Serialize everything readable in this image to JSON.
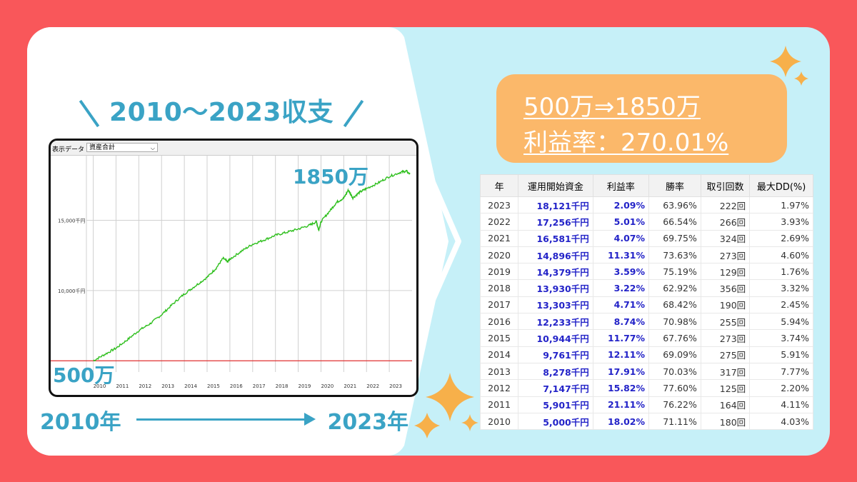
{
  "headline": "2010〜2023収支",
  "chart_labels": {
    "end_value": "1850万",
    "start_value": "500万"
  },
  "timeline": {
    "start": "2010年",
    "end": "2023年"
  },
  "summary": {
    "line1": "500万⇒1850万",
    "line2": "利益率：270.01%"
  },
  "chart_ui": {
    "display_label": "表示データ",
    "selected": "資産合計"
  },
  "colors": {
    "background": "#f9575a",
    "panel_light": "#c6f0f8",
    "accent": "#3aa3c5",
    "summary_box": "#fbb86a",
    "line": "#2fbf1e",
    "baseline": "#e03030",
    "sparkle": "#f7b04a"
  },
  "table": {
    "headers": [
      "年",
      "運用開始資金",
      "利益率",
      "勝率",
      "取引回数",
      "最大DD(%)"
    ],
    "rows": [
      {
        "year": "2023",
        "capital": "18,121千円",
        "profit": "2.09%",
        "win": "63.96%",
        "trades": "222回",
        "dd": "1.97%"
      },
      {
        "year": "2022",
        "capital": "17,256千円",
        "profit": "5.01%",
        "win": "66.54%",
        "trades": "266回",
        "dd": "3.93%"
      },
      {
        "year": "2021",
        "capital": "16,581千円",
        "profit": "4.07%",
        "win": "69.75%",
        "trades": "324回",
        "dd": "2.69%"
      },
      {
        "year": "2020",
        "capital": "14,896千円",
        "profit": "11.31%",
        "win": "73.63%",
        "trades": "273回",
        "dd": "4.60%"
      },
      {
        "year": "2019",
        "capital": "14,379千円",
        "profit": "3.59%",
        "win": "75.19%",
        "trades": "129回",
        "dd": "1.76%"
      },
      {
        "year": "2018",
        "capital": "13,930千円",
        "profit": "3.22%",
        "win": "62.92%",
        "trades": "356回",
        "dd": "3.32%"
      },
      {
        "year": "2017",
        "capital": "13,303千円",
        "profit": "4.71%",
        "win": "68.42%",
        "trades": "190回",
        "dd": "2.45%"
      },
      {
        "year": "2016",
        "capital": "12,233千円",
        "profit": "8.74%",
        "win": "70.98%",
        "trades": "255回",
        "dd": "5.94%"
      },
      {
        "year": "2015",
        "capital": "10,944千円",
        "profit": "11.77%",
        "win": "67.76%",
        "trades": "273回",
        "dd": "3.74%"
      },
      {
        "year": "2014",
        "capital": "9,761千円",
        "profit": "12.11%",
        "win": "69.09%",
        "trades": "275回",
        "dd": "5.91%"
      },
      {
        "year": "2013",
        "capital": "8,278千円",
        "profit": "17.91%",
        "win": "70.03%",
        "trades": "317回",
        "dd": "7.77%"
      },
      {
        "year": "2012",
        "capital": "7,147千円",
        "profit": "15.82%",
        "win": "77.60%",
        "trades": "125回",
        "dd": "2.20%"
      },
      {
        "year": "2011",
        "capital": "5,901千円",
        "profit": "21.11%",
        "win": "76.22%",
        "trades": "164回",
        "dd": "4.11%"
      },
      {
        "year": "2010",
        "capital": "5,000千円",
        "profit": "18.02%",
        "win": "71.11%",
        "trades": "180回",
        "dd": "4.03%"
      }
    ]
  },
  "chart_data": {
    "type": "line",
    "x_ticks": [
      "2010",
      "2011",
      "2012",
      "2013",
      "2014",
      "2015",
      "2016",
      "2017",
      "2018",
      "2019",
      "2020",
      "2021",
      "2022",
      "2023"
    ],
    "y_ticks": [
      "10,000千円",
      "15,000千円"
    ],
    "y_tick_values": [
      10000,
      15000
    ],
    "baseline": 5000,
    "ylim": [
      4200,
      19600
    ],
    "xlim": [
      2009.7,
      2024.0
    ],
    "grid": true,
    "series": [
      {
        "points": [
          [
            2010.0,
            5000
          ],
          [
            2010.5,
            5450
          ],
          [
            2011.0,
            5900
          ],
          [
            2011.5,
            6500
          ],
          [
            2012.0,
            7150
          ],
          [
            2012.5,
            7650
          ],
          [
            2013.0,
            8280
          ],
          [
            2013.5,
            9050
          ],
          [
            2014.0,
            9760
          ],
          [
            2014.5,
            10350
          ],
          [
            2015.0,
            10940
          ],
          [
            2015.4,
            11600
          ],
          [
            2015.7,
            12300
          ],
          [
            2015.9,
            12050
          ],
          [
            2016.0,
            12230
          ],
          [
            2016.5,
            12800
          ],
          [
            2017.0,
            13300
          ],
          [
            2017.5,
            13600
          ],
          [
            2018.0,
            13930
          ],
          [
            2018.5,
            14150
          ],
          [
            2019.0,
            14380
          ],
          [
            2019.5,
            14650
          ],
          [
            2019.8,
            14900
          ],
          [
            2019.9,
            14300
          ],
          [
            2020.0,
            14900
          ],
          [
            2020.4,
            15700
          ],
          [
            2020.7,
            16300
          ],
          [
            2021.0,
            16580
          ],
          [
            2021.2,
            17150
          ],
          [
            2021.4,
            16600
          ],
          [
            2021.7,
            17000
          ],
          [
            2022.0,
            17260
          ],
          [
            2022.5,
            17650
          ],
          [
            2023.0,
            18120
          ],
          [
            2023.5,
            18420
          ],
          [
            2023.75,
            18500
          ],
          [
            2023.9,
            18300
          ]
        ]
      }
    ]
  }
}
